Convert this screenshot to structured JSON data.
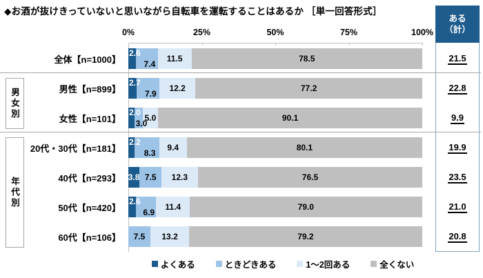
{
  "title": "◆お酒が抜けきっていないと思いながら自転車を運転することはあるか ［単一回答形式］",
  "aru_header": {
    "line1": "ある",
    "line2": "（計）"
  },
  "chart_data": {
    "type": "bar",
    "stacked": true,
    "orientation": "horizontal",
    "xlim": [
      0,
      100
    ],
    "x_ticks": [
      "0%",
      "25%",
      "50%",
      "75%",
      "100%"
    ],
    "legend": [
      "よくある",
      "ときどきある",
      "1～2回ある",
      "全くない"
    ],
    "colors": [
      "#1B5A8C",
      "#9DC3E6",
      "#DCEAF7",
      "#BFBFBF"
    ],
    "categories": [
      "全体【n=1000】",
      "男性【n=899】",
      "女性【n=101】",
      "20代・30代【n=181】",
      "40代【n=293】",
      "50代【n=420】",
      "60代【n=106】"
    ],
    "series": [
      {
        "name": "よくある",
        "values": [
          2.6,
          2.7,
          2.0,
          2.2,
          3.8,
          2.6,
          0
        ]
      },
      {
        "name": "ときどきある",
        "values": [
          7.4,
          7.9,
          3.0,
          8.3,
          7.5,
          6.9,
          7.5
        ]
      },
      {
        "name": "1～2回ある",
        "values": [
          11.5,
          12.2,
          5.0,
          9.4,
          12.3,
          11.4,
          13.2
        ]
      },
      {
        "name": "全くない",
        "values": [
          78.5,
          77.2,
          90.1,
          80.1,
          76.5,
          79.0,
          79.2
        ]
      }
    ],
    "aru_kei": [
      "21.5",
      "22.8",
      "9.9",
      "19.9",
      "23.5",
      "21.0",
      "20.8"
    ],
    "groups": [
      {
        "label": "男女別",
        "start_row": 1,
        "span": 2
      },
      {
        "label": "年代別",
        "start_row": 3,
        "span": 4
      }
    ]
  }
}
